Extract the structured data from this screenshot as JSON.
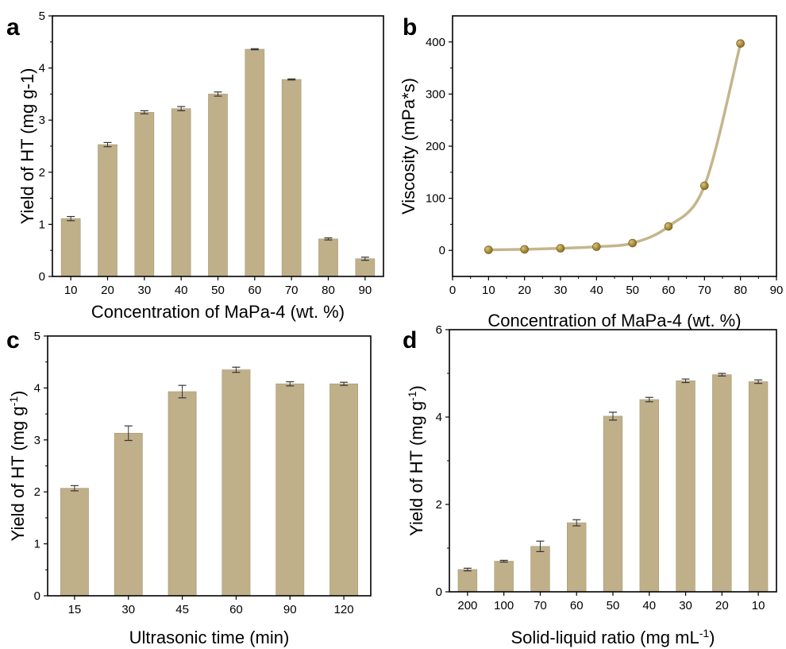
{
  "panels": [
    {
      "letter": "a"
    },
    {
      "letter": "b"
    },
    {
      "letter": "c"
    },
    {
      "letter": "d"
    }
  ],
  "colors": {
    "bar": "#bfb08a",
    "bar_edge": "#a89a75",
    "line": "#c4b58c",
    "marker": "#8c6e1e",
    "axis": "#000000"
  },
  "chart_data": [
    {
      "type": "bar",
      "panel": "a",
      "categories": [
        "10",
        "20",
        "30",
        "40",
        "50",
        "60",
        "70",
        "80",
        "90"
      ],
      "values": [
        1.11,
        2.53,
        3.15,
        3.22,
        3.5,
        4.36,
        3.78,
        0.72,
        0.34
      ],
      "errors": [
        0.04,
        0.04,
        0.03,
        0.04,
        0.04,
        0.01,
        0.01,
        0.02,
        0.03
      ],
      "xlabel": "Concentration of MaPa-4 (wt. %)",
      "ylabel": "Yield of HT  (mg g-1)",
      "ylim": [
        0,
        5
      ],
      "yticks": [
        "0",
        "1",
        "2",
        "3",
        "4",
        "5"
      ],
      "grid": false
    },
    {
      "type": "line",
      "panel": "b",
      "x": [
        10,
        20,
        30,
        40,
        50,
        60,
        70,
        80
      ],
      "y": [
        1,
        2,
        4,
        7,
        14,
        46,
        124,
        397
      ],
      "xlabel": "Concentration of MaPa-4 (wt. %)",
      "ylabel": "Viscosity (mPa*s)",
      "xlim": [
        0,
        90
      ],
      "ylim": [
        -50,
        450
      ],
      "xticks": [
        "0",
        "10",
        "20",
        "30",
        "40",
        "50",
        "60",
        "70",
        "80",
        "90"
      ],
      "yticks": [
        "0",
        "100",
        "200",
        "300",
        "400"
      ],
      "grid": false
    },
    {
      "type": "bar",
      "panel": "c",
      "categories": [
        "15",
        "30",
        "45",
        "60",
        "90",
        "120"
      ],
      "values": [
        2.07,
        3.13,
        3.93,
        4.35,
        4.08,
        4.08
      ],
      "errors": [
        0.05,
        0.14,
        0.12,
        0.05,
        0.04,
        0.03
      ],
      "xlabel": "Ultrasonic time (min)",
      "ylabel": "Yield of HT (mg g",
      "ylabel_sup": "-1",
      "ylabel_end": ")",
      "ylim": [
        0,
        5
      ],
      "yticks": [
        "0",
        "1",
        "2",
        "3",
        "4",
        "5"
      ],
      "grid": false
    },
    {
      "type": "bar",
      "panel": "d",
      "categories": [
        "200",
        "100",
        "70",
        "60",
        "50",
        "40",
        "30",
        "20",
        "10"
      ],
      "values": [
        0.51,
        0.7,
        1.04,
        1.58,
        4.02,
        4.4,
        4.83,
        4.97,
        4.81
      ],
      "errors": [
        0.03,
        0.02,
        0.12,
        0.07,
        0.09,
        0.05,
        0.04,
        0.03,
        0.04
      ],
      "xlabel": "Solid-liquid ratio (mg mL",
      "xlabel_sup": "-1",
      "xlabel_end": ")",
      "ylabel": "Yield of HT (mg g",
      "ylabel_sup": "-1",
      "ylabel_end": ")",
      "ylim": [
        0,
        6
      ],
      "yticks": [
        "0",
        "2",
        "4",
        "6"
      ],
      "grid": false
    }
  ]
}
